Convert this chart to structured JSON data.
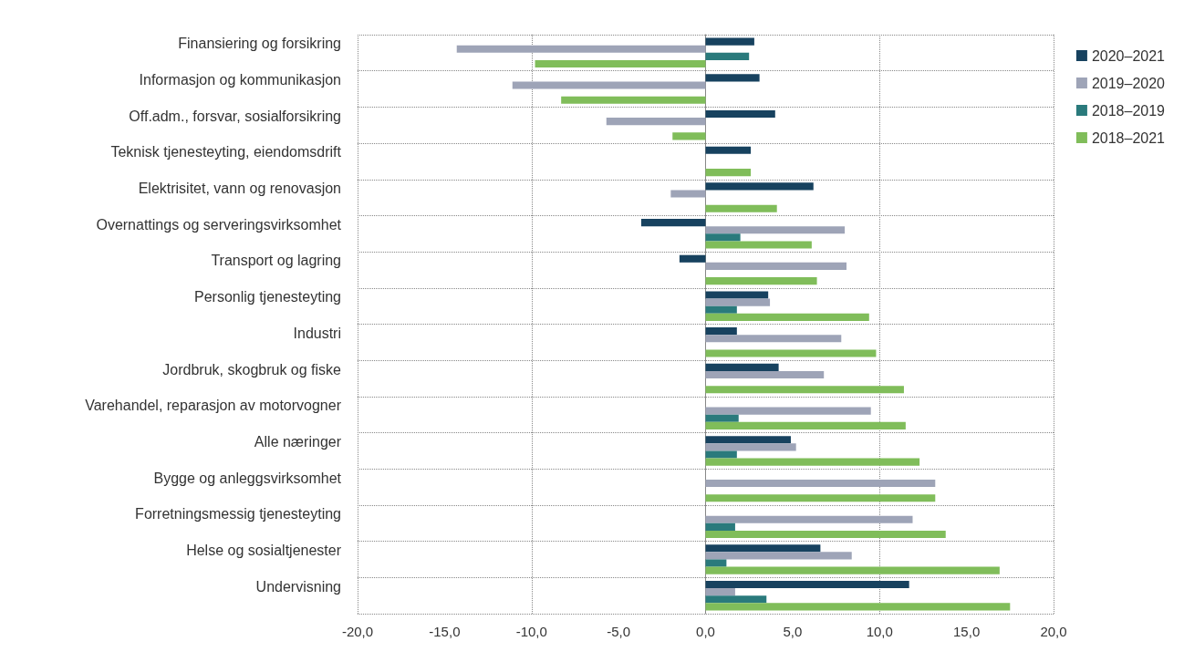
{
  "chart_data": {
    "type": "bar",
    "orientation": "horizontal",
    "categories": [
      "Finansiering og forsikring",
      "Informasjon og kommunikasjon",
      "Off.adm., forsvar, sosialforsikring",
      "Teknisk tjenesteyting, eiendomsdrift",
      "Elektrisitet, vann og renovasjon",
      "Overnattings og serveringsvirksomhet",
      "Transport og lagring",
      "Personlig tjenesteyting",
      "Industri",
      "Jordbruk, skogbruk og fiske",
      "Varehandel, reparasjon av motorvogner",
      "Alle næringer",
      "Bygge og anleggsvirksomhet",
      "Forretningsmessig tjenesteyting",
      "Helse og sosialtjenester",
      "Undervisning"
    ],
    "series": [
      {
        "name": "2020–2021",
        "color": "#17425f",
        "values": [
          2.8,
          3.1,
          4.0,
          2.6,
          6.2,
          -3.7,
          -1.5,
          3.6,
          1.8,
          4.2,
          null,
          4.9,
          null,
          null,
          6.6,
          11.7
        ]
      },
      {
        "name": "2019–2020",
        "color": "#9ea4b7",
        "values": [
          -14.3,
          -11.1,
          -5.7,
          null,
          -2.0,
          8.0,
          8.1,
          3.7,
          7.8,
          6.8,
          9.5,
          5.2,
          13.2,
          11.9,
          8.4,
          1.7
        ]
      },
      {
        "name": "2018–2019",
        "color": "#2a7a7c",
        "values": [
          2.5,
          null,
          null,
          null,
          null,
          2.0,
          null,
          1.8,
          null,
          null,
          1.9,
          1.8,
          null,
          1.7,
          1.2,
          3.5
        ]
      },
      {
        "name": "2018–2021",
        "color": "#80bd5a",
        "values": [
          -9.8,
          -8.3,
          -1.9,
          2.6,
          4.1,
          6.1,
          6.4,
          9.4,
          9.8,
          11.4,
          11.5,
          12.3,
          13.2,
          13.8,
          16.9,
          17.5
        ]
      }
    ],
    "xlim": [
      -20,
      20
    ],
    "xticks": [
      {
        "value": -20,
        "label": "-20,0"
      },
      {
        "value": -15,
        "label": "-15,0"
      },
      {
        "value": -10,
        "label": "-10,0"
      },
      {
        "value": -5,
        "label": "-5,0"
      },
      {
        "value": 0,
        "label": "0,0"
      },
      {
        "value": 5,
        "label": "5,0"
      },
      {
        "value": 10,
        "label": "10,0"
      },
      {
        "value": 15,
        "label": "15,0"
      },
      {
        "value": 20,
        "label": "20,0"
      }
    ],
    "grid": true,
    "legend": "top right"
  }
}
